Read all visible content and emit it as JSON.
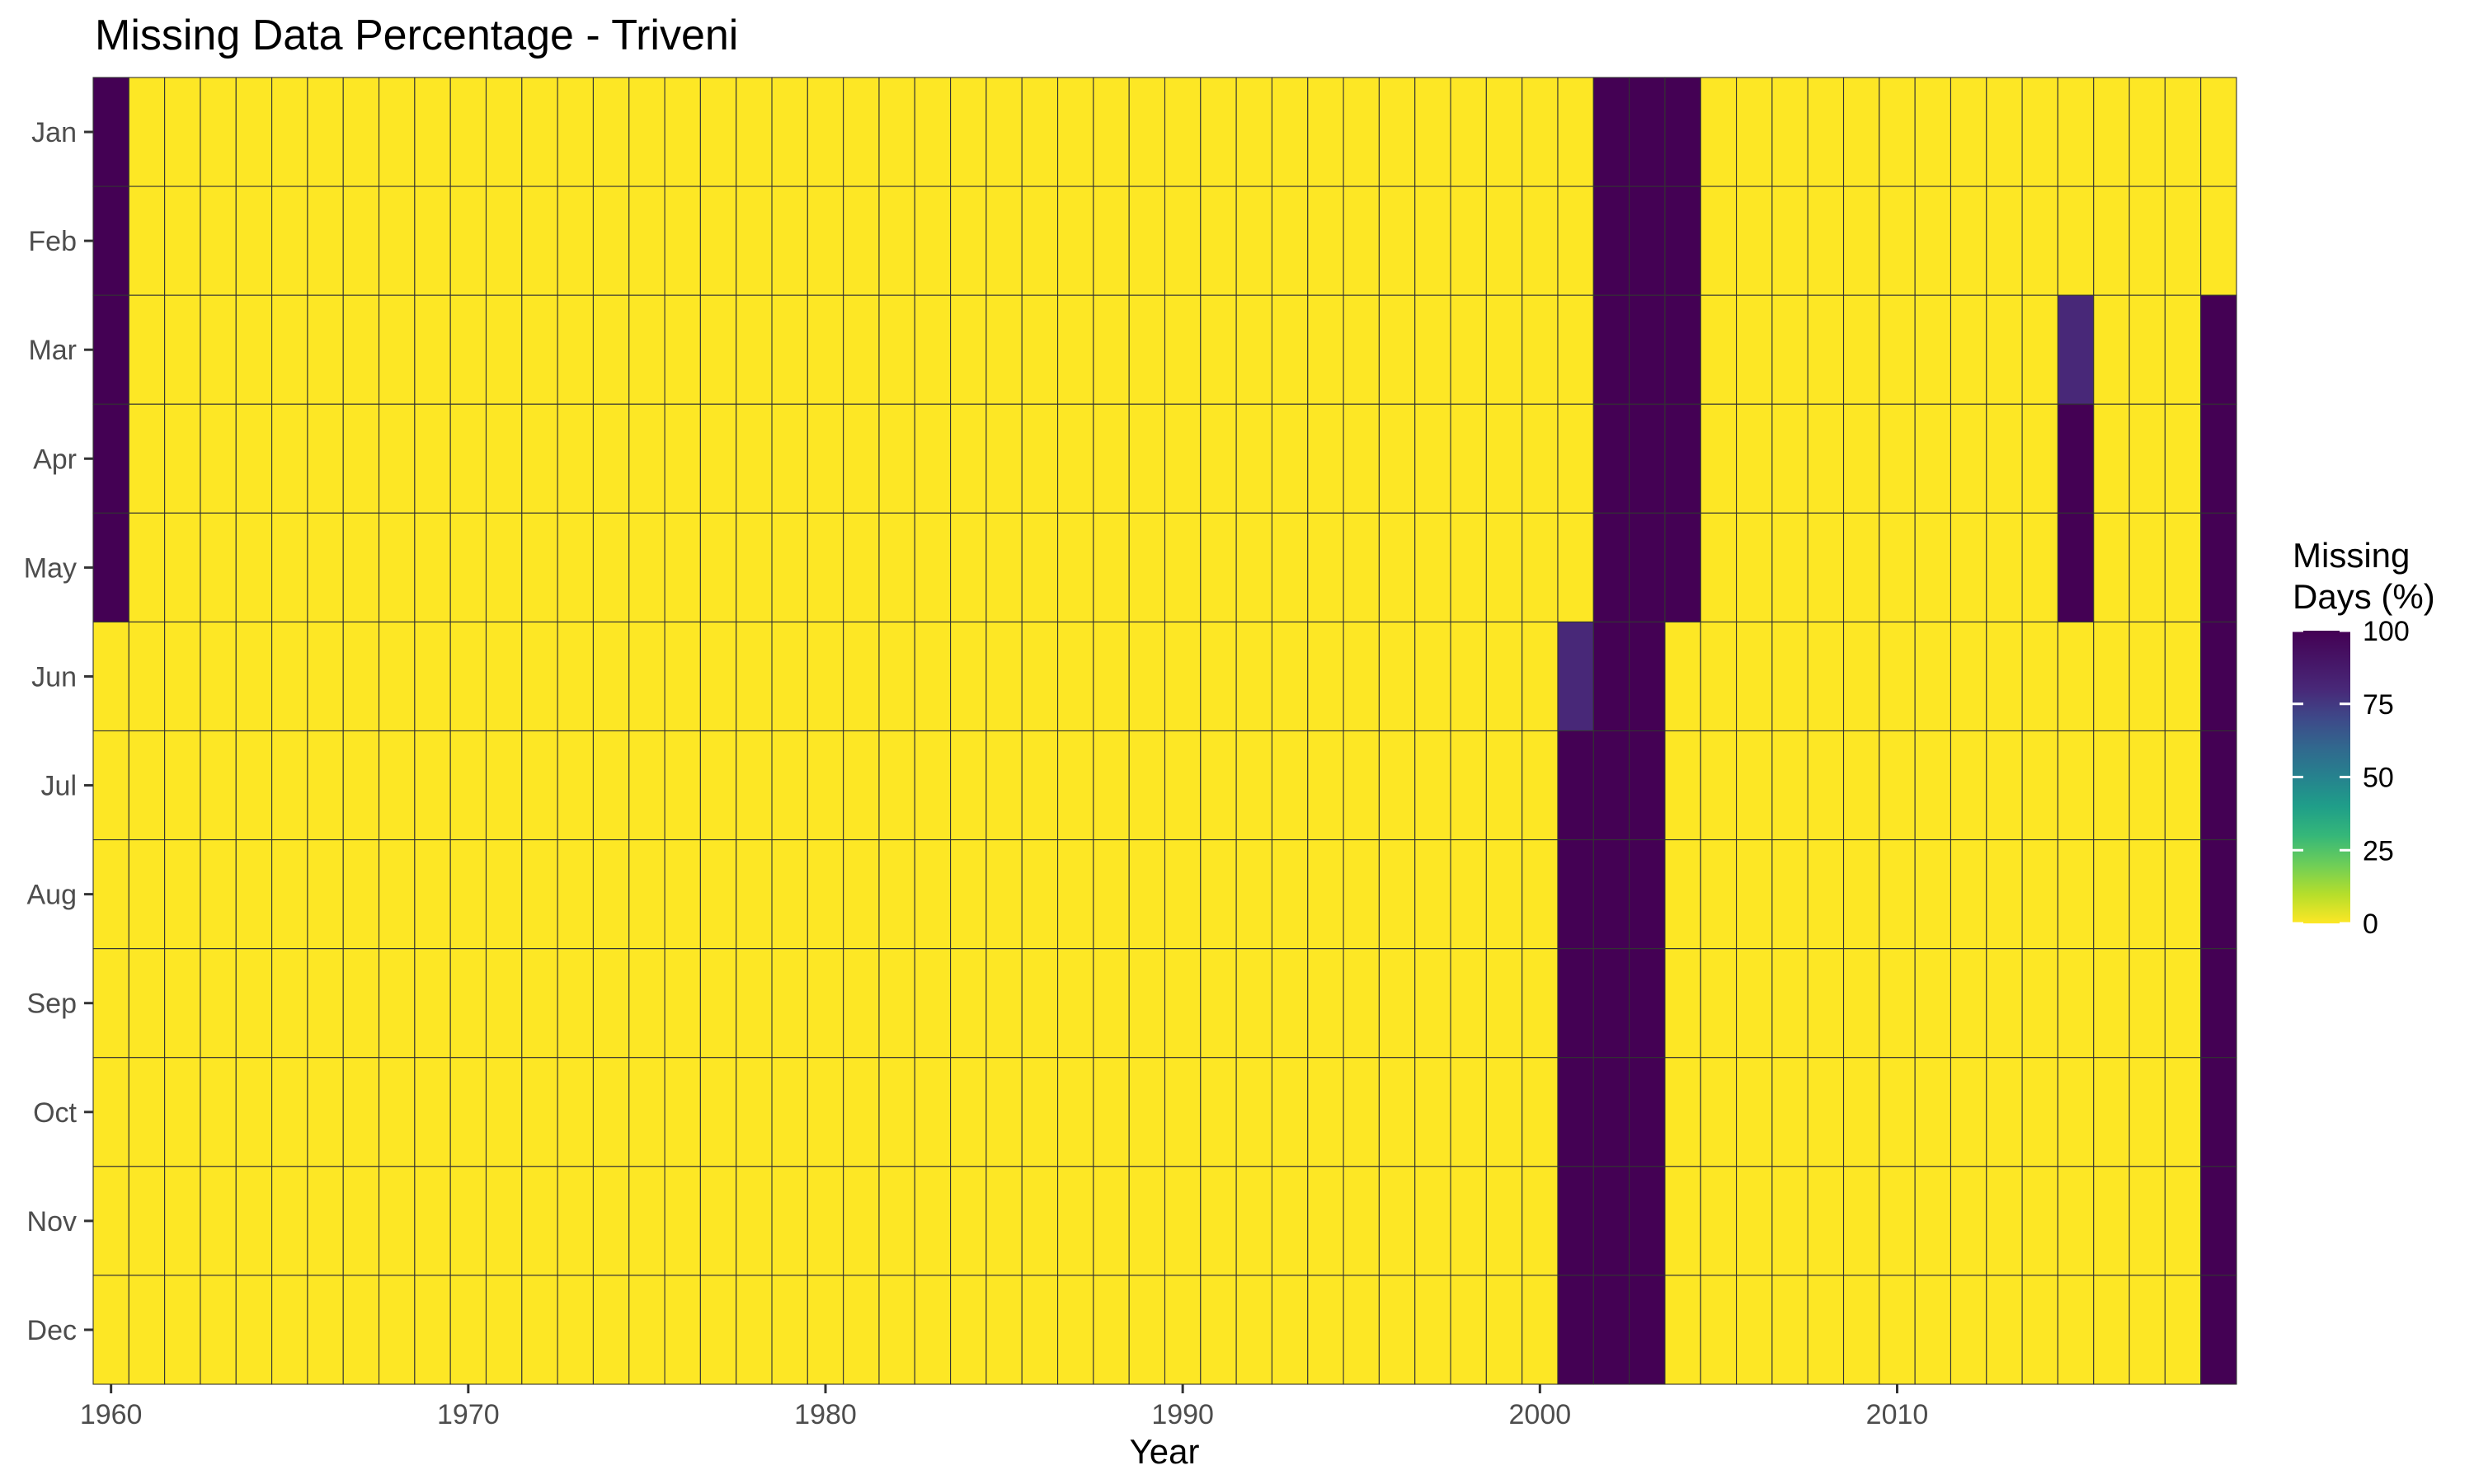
{
  "chart_data": {
    "type": "heatmap",
    "title": "Missing Data Percentage - Triveni",
    "xlabel": "Year",
    "ylabel": "",
    "x_ticks": [
      1960,
      1970,
      1980,
      1990,
      2000,
      2010
    ],
    "xlim": [
      1960,
      2019
    ],
    "months": [
      "Jan",
      "Feb",
      "Mar",
      "Apr",
      "May",
      "Jun",
      "Jul",
      "Aug",
      "Sep",
      "Oct",
      "Nov",
      "Dec"
    ],
    "legend": {
      "title_lines": [
        "Missing",
        "Days (%)"
      ],
      "ticks": [
        100,
        75,
        50,
        25,
        0
      ],
      "colorscale": "viridis",
      "range": [
        0,
        100
      ],
      "placement": "right"
    },
    "grid": true,
    "default_value": 0,
    "nonzero_cells": [
      {
        "year": 1960,
        "month": "Jan",
        "value": 100
      },
      {
        "year": 1960,
        "month": "Feb",
        "value": 100
      },
      {
        "year": 1960,
        "month": "Mar",
        "value": 100
      },
      {
        "year": 1960,
        "month": "Apr",
        "value": 100
      },
      {
        "year": 1960,
        "month": "May",
        "value": 100
      },
      {
        "year": 2001,
        "month": "Jun",
        "value": 80
      },
      {
        "year": 2001,
        "month": "Jul",
        "value": 100
      },
      {
        "year": 2001,
        "month": "Aug",
        "value": 100
      },
      {
        "year": 2001,
        "month": "Sep",
        "value": 100
      },
      {
        "year": 2001,
        "month": "Oct",
        "value": 100
      },
      {
        "year": 2001,
        "month": "Nov",
        "value": 100
      },
      {
        "year": 2001,
        "month": "Dec",
        "value": 100
      },
      {
        "year": 2002,
        "month": "Jan",
        "value": 100
      },
      {
        "year": 2002,
        "month": "Feb",
        "value": 100
      },
      {
        "year": 2002,
        "month": "Mar",
        "value": 100
      },
      {
        "year": 2002,
        "month": "Apr",
        "value": 100
      },
      {
        "year": 2002,
        "month": "May",
        "value": 100
      },
      {
        "year": 2002,
        "month": "Jun",
        "value": 100
      },
      {
        "year": 2002,
        "month": "Jul",
        "value": 100
      },
      {
        "year": 2002,
        "month": "Aug",
        "value": 100
      },
      {
        "year": 2002,
        "month": "Sep",
        "value": 100
      },
      {
        "year": 2002,
        "month": "Oct",
        "value": 100
      },
      {
        "year": 2002,
        "month": "Nov",
        "value": 100
      },
      {
        "year": 2002,
        "month": "Dec",
        "value": 100
      },
      {
        "year": 2003,
        "month": "Jan",
        "value": 100
      },
      {
        "year": 2003,
        "month": "Feb",
        "value": 100
      },
      {
        "year": 2003,
        "month": "Mar",
        "value": 100
      },
      {
        "year": 2003,
        "month": "Apr",
        "value": 100
      },
      {
        "year": 2003,
        "month": "May",
        "value": 100
      },
      {
        "year": 2003,
        "month": "Jun",
        "value": 100
      },
      {
        "year": 2003,
        "month": "Jul",
        "value": 100
      },
      {
        "year": 2003,
        "month": "Aug",
        "value": 100
      },
      {
        "year": 2003,
        "month": "Sep",
        "value": 100
      },
      {
        "year": 2003,
        "month": "Oct",
        "value": 100
      },
      {
        "year": 2003,
        "month": "Nov",
        "value": 100
      },
      {
        "year": 2003,
        "month": "Dec",
        "value": 100
      },
      {
        "year": 2004,
        "month": "Jan",
        "value": 100
      },
      {
        "year": 2004,
        "month": "Feb",
        "value": 100
      },
      {
        "year": 2004,
        "month": "Mar",
        "value": 100
      },
      {
        "year": 2004,
        "month": "Apr",
        "value": 100
      },
      {
        "year": 2004,
        "month": "May",
        "value": 100
      },
      {
        "year": 2015,
        "month": "Mar",
        "value": 80
      },
      {
        "year": 2015,
        "month": "Apr",
        "value": 100
      },
      {
        "year": 2015,
        "month": "May",
        "value": 100
      },
      {
        "year": 2019,
        "month": "Mar",
        "value": 100
      },
      {
        "year": 2019,
        "month": "Apr",
        "value": 100
      },
      {
        "year": 2019,
        "month": "May",
        "value": 100
      },
      {
        "year": 2019,
        "month": "Jun",
        "value": 100
      },
      {
        "year": 2019,
        "month": "Jul",
        "value": 100
      },
      {
        "year": 2019,
        "month": "Aug",
        "value": 100
      },
      {
        "year": 2019,
        "month": "Sep",
        "value": 100
      },
      {
        "year": 2019,
        "month": "Oct",
        "value": 100
      },
      {
        "year": 2019,
        "month": "Nov",
        "value": 100
      },
      {
        "year": 2019,
        "month": "Dec",
        "value": 100
      }
    ]
  }
}
